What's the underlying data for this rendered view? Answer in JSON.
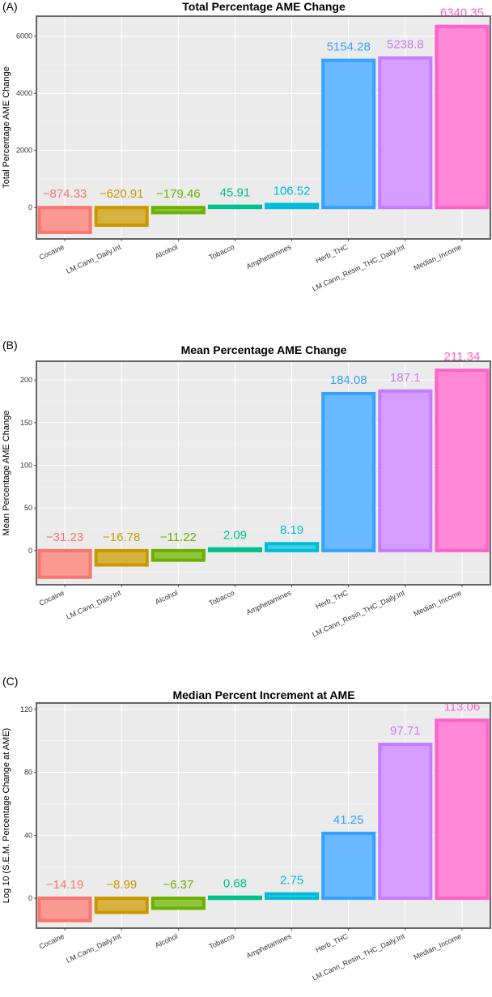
{
  "chart_data": [
    {
      "type": "bar",
      "panel_label": "(A)",
      "title": "Total Percentage AME Change",
      "ylabel": "Total Percentage AME Change",
      "xlabel": "",
      "categories": [
        "Cocaine",
        "LM.Cann_Daily.Int",
        "Alcohol",
        "Tobacco",
        "Amphetamines",
        "Herb_THC",
        "LM.Cann_Resin_THC_Daily.Int",
        "Median_Income"
      ],
      "values": [
        -874.33,
        -620.91,
        -179.46,
        45.91,
        106.52,
        5154.28,
        5238.8,
        6340.35
      ],
      "value_labels": [
        "−874.33",
        "−620.91",
        "−179.46",
        "45.91",
        "106.52",
        "5154.28",
        "5238.8",
        "6340.35"
      ],
      "ylim": [
        -1100,
        6700
      ],
      "yticks": [
        0,
        2000,
        4000,
        6000
      ],
      "grid": true,
      "colors": [
        "#f8766d",
        "#c99800",
        "#6bb100",
        "#00c08b",
        "#00bcd8",
        "#35a2ff",
        "#c77cff",
        "#ff61c9"
      ]
    },
    {
      "type": "bar",
      "panel_label": "(B)",
      "title": "Mean Percentage AME Change",
      "ylabel": "Mean Percentage AME Change",
      "xlabel": "",
      "categories": [
        "Cocaine",
        "LM.Cann_Daily.Int",
        "Alcohol",
        "Tobacco",
        "Amphetamines",
        "Herb_THC",
        "LM.Cann_Resin_THC_Daily.Int",
        "Median_Income"
      ],
      "values": [
        -31.23,
        -16.78,
        -11.22,
        2.09,
        8.19,
        184.08,
        187.1,
        211.34
      ],
      "value_labels": [
        "−31.23",
        "−16.78",
        "−11.22",
        "2.09",
        "8.19",
        "184.08",
        "187.1",
        "211.34"
      ],
      "ylim": [
        -40,
        222
      ],
      "yticks": [
        0,
        50,
        100,
        150,
        200
      ],
      "grid": true,
      "colors": [
        "#f8766d",
        "#c99800",
        "#6bb100",
        "#00c08b",
        "#00bcd8",
        "#35a2ff",
        "#c77cff",
        "#ff61c9"
      ]
    },
    {
      "type": "bar",
      "panel_label": "(C)",
      "title": "Median Percent Increment at AME",
      "ylabel": "Log 10 (S.E.M. Percentage Change at AME)",
      "xlabel": "",
      "categories": [
        "Cocaine",
        "LM.Cann_Daily.Int",
        "Alcohol",
        "Tobacco",
        "Amphetamines",
        "Herb_THC",
        "LM.Cann_Resin_THC_Daily.Int",
        "Median_Income"
      ],
      "values": [
        -14.19,
        -8.99,
        -6.37,
        0.68,
        2.75,
        41.25,
        97.71,
        113.06
      ],
      "value_labels": [
        "−14.19",
        "−8.99",
        "−6.37",
        "0.68",
        "2.75",
        "41.25",
        "97.71",
        "113.06"
      ],
      "ylim": [
        -19,
        124
      ],
      "yticks": [
        0,
        40,
        80,
        120
      ],
      "grid": true,
      "colors": [
        "#f8766d",
        "#c99800",
        "#6bb100",
        "#00c08b",
        "#00bcd8",
        "#35a2ff",
        "#c77cff",
        "#ff61c9"
      ]
    }
  ]
}
